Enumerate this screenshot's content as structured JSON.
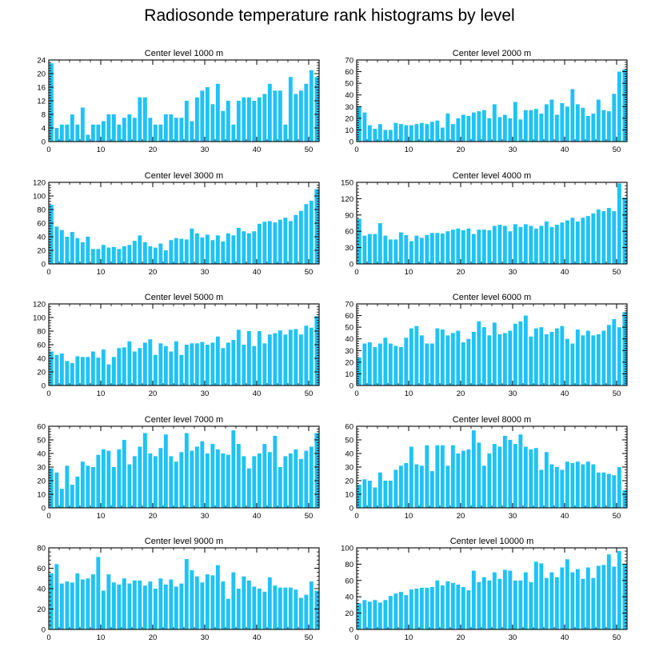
{
  "figure": {
    "title": "Radiosonde temperature rank histograms by level",
    "bar_color": "#1ec3f5",
    "edge_color": "#000000"
  },
  "chart_data": [
    {
      "type": "bar",
      "title": "Center level 1000 m",
      "xlim": [
        0,
        52
      ],
      "ylim": [
        0,
        24
      ],
      "xticks": [
        0,
        10,
        20,
        30,
        40,
        50
      ],
      "yticks": [
        0,
        4,
        8,
        12,
        16,
        20,
        24
      ],
      "values": [
        23,
        4,
        5,
        5,
        8,
        5,
        10,
        2,
        5,
        5,
        6,
        8,
        8,
        5,
        7,
        8,
        7,
        13,
        13,
        7,
        5,
        5,
        8,
        8,
        7,
        7,
        12,
        6,
        13,
        15,
        16,
        11,
        17,
        9,
        12,
        5,
        12,
        13,
        13,
        12,
        13,
        14,
        17,
        15,
        15,
        5,
        19,
        14,
        15,
        17,
        21,
        19
      ]
    },
    {
      "type": "bar",
      "title": "Center level 2000 m",
      "xlim": [
        0,
        52
      ],
      "ylim": [
        0,
        70
      ],
      "xticks": [
        0,
        10,
        20,
        30,
        40,
        50
      ],
      "yticks": [
        0,
        10,
        20,
        30,
        40,
        50,
        60,
        70
      ],
      "values": [
        30,
        25,
        14,
        11,
        15,
        10,
        10,
        16,
        15,
        14,
        14,
        15,
        16,
        15,
        17,
        18,
        12,
        24,
        15,
        20,
        23,
        22,
        25,
        26,
        27,
        20,
        32,
        21,
        23,
        20,
        34,
        19,
        27,
        27,
        28,
        24,
        32,
        36,
        23,
        33,
        30,
        45,
        32,
        29,
        22,
        24,
        36,
        27,
        26,
        41,
        60,
        62
      ]
    },
    {
      "type": "bar",
      "title": "Center level 3000 m",
      "xlim": [
        0,
        52
      ],
      "ylim": [
        0,
        120
      ],
      "xticks": [
        0,
        10,
        20,
        30,
        40,
        50
      ],
      "yticks": [
        0,
        20,
        40,
        60,
        80,
        100,
        120
      ],
      "values": [
        87,
        55,
        50,
        40,
        47,
        38,
        32,
        40,
        22,
        22,
        28,
        24,
        25,
        22,
        26,
        28,
        34,
        42,
        32,
        26,
        24,
        30,
        20,
        35,
        38,
        37,
        36,
        52,
        45,
        39,
        43,
        35,
        42,
        33,
        45,
        42,
        53,
        48,
        45,
        48,
        59,
        62,
        63,
        61,
        65,
        68,
        63,
        72,
        78,
        88,
        93,
        110
      ]
    },
    {
      "type": "bar",
      "title": "Center level 4000 m",
      "xlim": [
        0,
        52
      ],
      "ylim": [
        0,
        150
      ],
      "xticks": [
        0,
        10,
        20,
        30,
        40,
        50
      ],
      "yticks": [
        0,
        30,
        60,
        90,
        120,
        150
      ],
      "values": [
        83,
        52,
        55,
        55,
        75,
        52,
        45,
        45,
        58,
        53,
        42,
        52,
        48,
        53,
        57,
        57,
        56,
        60,
        63,
        65,
        62,
        65,
        55,
        63,
        63,
        62,
        70,
        72,
        70,
        60,
        73,
        68,
        73,
        70,
        65,
        70,
        78,
        68,
        72,
        76,
        80,
        85,
        78,
        85,
        88,
        93,
        100,
        97,
        103,
        97,
        148,
        122
      ]
    },
    {
      "type": "bar",
      "title": "Center level 5000 m",
      "xlim": [
        0,
        52
      ],
      "ylim": [
        0,
        120
      ],
      "xticks": [
        0,
        10,
        20,
        30,
        40,
        50
      ],
      "yticks": [
        0,
        20,
        40,
        60,
        80,
        100,
        120
      ],
      "values": [
        50,
        45,
        47,
        36,
        33,
        43,
        42,
        42,
        50,
        41,
        53,
        31,
        42,
        55,
        56,
        65,
        50,
        55,
        63,
        68,
        45,
        62,
        58,
        50,
        65,
        45,
        60,
        62,
        62,
        64,
        60,
        63,
        72,
        55,
        63,
        67,
        82,
        60,
        80,
        58,
        80,
        62,
        75,
        77,
        81,
        75,
        82,
        83,
        75,
        88,
        85,
        102
      ]
    },
    {
      "type": "bar",
      "title": "Center level 6000 m",
      "xlim": [
        0,
        52
      ],
      "ylim": [
        0,
        70
      ],
      "xticks": [
        0,
        10,
        20,
        30,
        40,
        50
      ],
      "yticks": [
        0,
        10,
        20,
        30,
        40,
        50,
        60,
        70
      ],
      "values": [
        24,
        36,
        37,
        33,
        36,
        41,
        36,
        34,
        33,
        41,
        49,
        51,
        43,
        36,
        36,
        49,
        48,
        43,
        45,
        47,
        37,
        40,
        46,
        55,
        50,
        43,
        54,
        44,
        45,
        47,
        53,
        55,
        60,
        42,
        49,
        50,
        44,
        46,
        49,
        51,
        40,
        36,
        48,
        43,
        47,
        43,
        44,
        47,
        52,
        57,
        50,
        63
      ]
    },
    {
      "type": "bar",
      "title": "Center level 7000 m",
      "xlim": [
        0,
        52
      ],
      "ylim": [
        0,
        60
      ],
      "xticks": [
        0,
        10,
        20,
        30,
        40,
        50
      ],
      "yticks": [
        0,
        10,
        20,
        30,
        40,
        50,
        60
      ],
      "values": [
        29,
        26,
        14,
        31,
        17,
        23,
        34,
        31,
        30,
        39,
        43,
        42,
        30,
        43,
        50,
        32,
        38,
        45,
        55,
        40,
        38,
        44,
        54,
        38,
        34,
        41,
        55,
        42,
        45,
        49,
        40,
        47,
        43,
        40,
        39,
        57,
        47,
        38,
        29,
        38,
        40,
        47,
        41,
        53,
        30,
        38,
        40,
        43,
        36,
        42,
        45,
        55
      ]
    },
    {
      "type": "bar",
      "title": "Center level 8000 m",
      "xlim": [
        0,
        52
      ],
      "ylim": [
        0,
        60
      ],
      "xticks": [
        0,
        10,
        20,
        30,
        40,
        50
      ],
      "yticks": [
        0,
        10,
        20,
        30,
        40,
        50,
        60
      ],
      "values": [
        17,
        21,
        20,
        15,
        26,
        20,
        20,
        28,
        31,
        33,
        45,
        32,
        31,
        46,
        27,
        46,
        46,
        31,
        46,
        40,
        42,
        43,
        57,
        48,
        31,
        40,
        47,
        45,
        53,
        50,
        47,
        54,
        45,
        43,
        44,
        28,
        41,
        32,
        30,
        28,
        34,
        33,
        34,
        32,
        34,
        32,
        26,
        26,
        25,
        24,
        30,
        13
      ]
    },
    {
      "type": "bar",
      "title": "Center level 9000 m",
      "xlim": [
        0,
        52
      ],
      "ylim": [
        0,
        80
      ],
      "xticks": [
        0,
        10,
        20,
        30,
        40,
        50
      ],
      "yticks": [
        0,
        20,
        40,
        60,
        80
      ],
      "values": [
        55,
        64,
        45,
        47,
        46,
        55,
        49,
        50,
        54,
        71,
        38,
        54,
        46,
        44,
        50,
        45,
        48,
        48,
        43,
        47,
        40,
        50,
        44,
        49,
        42,
        45,
        69,
        58,
        52,
        46,
        54,
        53,
        63,
        47,
        30,
        56,
        40,
        52,
        48,
        42,
        40,
        37,
        51,
        43,
        41,
        41,
        41,
        39,
        31,
        34,
        47,
        38
      ]
    },
    {
      "type": "bar",
      "title": "Center level 10000 m",
      "xlim": [
        0,
        52
      ],
      "ylim": [
        0,
        100
      ],
      "xticks": [
        0,
        10,
        20,
        30,
        40,
        50
      ],
      "yticks": [
        0,
        20,
        40,
        60,
        80,
        100
      ],
      "values": [
        32,
        36,
        34,
        36,
        33,
        36,
        41,
        44,
        46,
        42,
        49,
        50,
        51,
        51,
        52,
        60,
        54,
        59,
        57,
        55,
        52,
        48,
        72,
        58,
        64,
        60,
        70,
        62,
        73,
        72,
        60,
        60,
        70,
        58,
        83,
        81,
        63,
        70,
        64,
        76,
        86,
        70,
        74,
        62,
        76,
        63,
        78,
        79,
        92,
        77,
        96,
        80
      ]
    }
  ]
}
